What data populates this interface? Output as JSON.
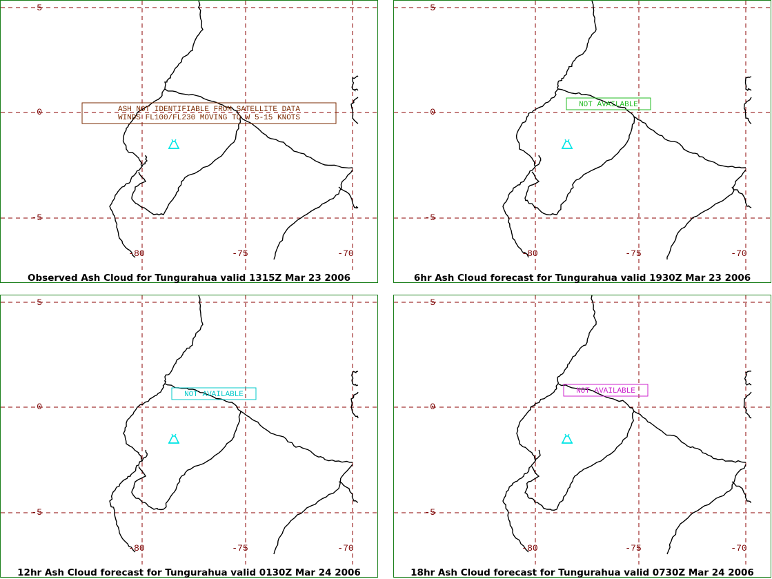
{
  "colors": {
    "grid": "#8b0000",
    "border": "#1a7f1a",
    "coast": "#000000",
    "volcano": "#00e5e5"
  },
  "axes": {
    "lat_labels": [
      "5",
      "0",
      "-5"
    ],
    "lon_labels": [
      "-80",
      "-75",
      "-70"
    ]
  },
  "volcano_icon": "volcano-triangle-icon",
  "panels": [
    {
      "caption": "Observed Ash Cloud for Tungurahua valid 1315Z Mar 23 2006",
      "message_lines": [
        "ASH NOT IDENTIFIABLE FROM SATELLITE DATA",
        "WINDS FL100/FL230 MOVING TO W 5-15 KNOTS"
      ],
      "message_color": "#7a2a00"
    },
    {
      "caption": "6hr Ash Cloud forecast for Tungurahua valid 1930Z Mar 23 2006",
      "message_lines": [
        "NOT AVAILABLE"
      ],
      "message_color": "#22bb22"
    },
    {
      "caption": "12hr Ash Cloud forecast for Tungurahua valid 0130Z Mar 24 2006",
      "message_lines": [
        "NOT AVAILABLE"
      ],
      "message_color": "#00c8c8"
    },
    {
      "caption": "18hr Ash Cloud forecast for Tungurahua valid 0730Z Mar 24 2006",
      "message_lines": [
        "NOT AVAILABLE"
      ],
      "message_color": "#cc22cc"
    }
  ]
}
